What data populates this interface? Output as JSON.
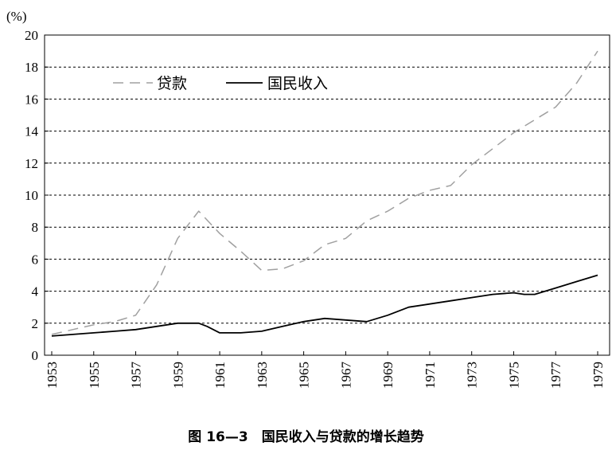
{
  "chart_data": {
    "type": "line",
    "unit_label": "(%)",
    "title": "",
    "xlabel": "",
    "ylabel": "",
    "ylim": [
      0,
      20
    ],
    "yticks": [
      0,
      2,
      4,
      6,
      8,
      10,
      12,
      14,
      16,
      18,
      20
    ],
    "xlim": [
      1953,
      1979
    ],
    "xticks": [
      "1953",
      "1955",
      "1957",
      "1959",
      "1961",
      "1963",
      "1965",
      "1967",
      "1969",
      "1971",
      "1973",
      "1975",
      "1977",
      "1979"
    ],
    "grid": "horizontal dashed",
    "legend_position": "top-left",
    "series": [
      {
        "name": "贷款",
        "style": "dashed",
        "color": "#a0a0a0",
        "x": [
          1953,
          1954,
          1955,
          1956,
          1957,
          1958,
          1959,
          1960,
          1961,
          1962,
          1963,
          1964,
          1965,
          1966,
          1967,
          1968,
          1969,
          1970,
          1971,
          1972,
          1973,
          1974,
          1975,
          1976,
          1977,
          1978,
          1979
        ],
        "values": [
          1.3,
          1.6,
          1.9,
          2.1,
          2.5,
          4.4,
          7.3,
          9.0,
          7.6,
          6.5,
          5.3,
          5.4,
          5.9,
          6.9,
          7.3,
          8.4,
          9.0,
          9.8,
          10.3,
          10.6,
          11.9,
          12.9,
          13.9,
          14.7,
          15.5,
          17.0,
          19.0
        ]
      },
      {
        "name": "国民收入",
        "style": "solid",
        "color": "#000000",
        "x": [
          1953,
          1954,
          1955,
          1956,
          1957,
          1958,
          1959,
          1960,
          1960.4,
          1961,
          1962,
          1963,
          1964,
          1965,
          1966,
          1967,
          1968,
          1969,
          1970,
          1971,
          1972,
          1973,
          1974,
          1975,
          1975.5,
          1976,
          1977,
          1978,
          1979
        ],
        "values": [
          1.2,
          1.3,
          1.4,
          1.5,
          1.6,
          1.8,
          2.0,
          2.0,
          1.8,
          1.4,
          1.4,
          1.5,
          1.8,
          2.1,
          2.3,
          2.2,
          2.1,
          2.5,
          3.0,
          3.2,
          3.4,
          3.6,
          3.8,
          3.9,
          3.8,
          3.8,
          4.2,
          4.6,
          5.0
        ]
      }
    ]
  },
  "caption": "图 16—3　国民收入与贷款的增长趋势"
}
